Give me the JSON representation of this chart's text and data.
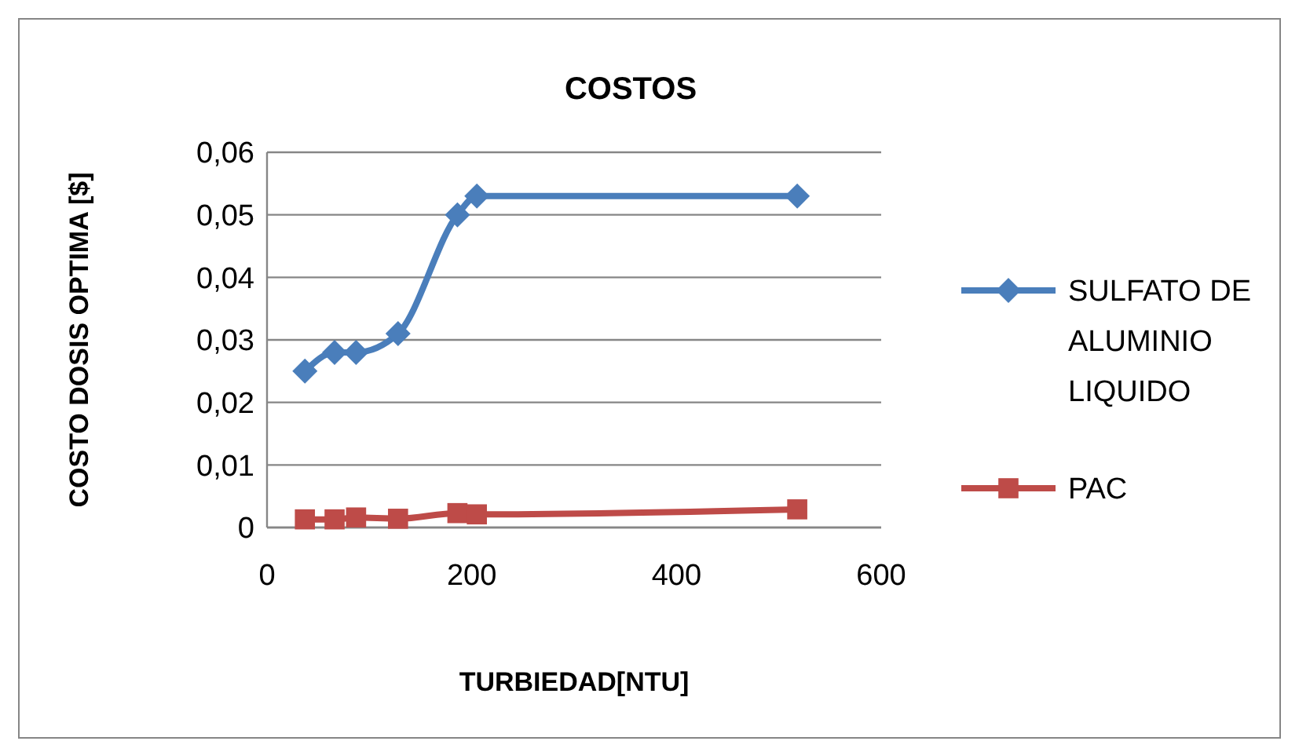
{
  "chart_data": {
    "type": "line",
    "title": "COSTOS",
    "xlabel": "TURBIEDAD[NTU]",
    "ylabel": "COSTO DOSIS OPTIMA [$]",
    "xlim": [
      0,
      600
    ],
    "xticks": [
      0,
      200,
      400,
      600
    ],
    "ylim": [
      0,
      0.06
    ],
    "yticks": [
      {
        "value": 0,
        "label": "0"
      },
      {
        "value": 0.01,
        "label": "0,01"
      },
      {
        "value": 0.02,
        "label": "0,02"
      },
      {
        "value": 0.03,
        "label": "0,03"
      },
      {
        "value": 0.04,
        "label": "0,04"
      },
      {
        "value": 0.05,
        "label": "0,05"
      },
      {
        "value": 0.06,
        "label": "0,06"
      }
    ],
    "grid": "y",
    "legend": "right",
    "series": [
      {
        "name": "SULFATO DE ALUMINIO LIQUIDO",
        "color": "#4a7ebb",
        "marker": "diamond",
        "x": [
          37,
          66,
          87,
          128,
          186,
          205,
          518
        ],
        "values": [
          0.025,
          0.028,
          0.028,
          0.031,
          0.05,
          0.053,
          0.053
        ]
      },
      {
        "name": "PAC",
        "color": "#be4b48",
        "marker": "square",
        "x": [
          37,
          66,
          87,
          128,
          186,
          205,
          518
        ],
        "values": [
          0.0013,
          0.0013,
          0.0016,
          0.0014,
          0.0023,
          0.0021,
          0.0029
        ]
      }
    ]
  }
}
